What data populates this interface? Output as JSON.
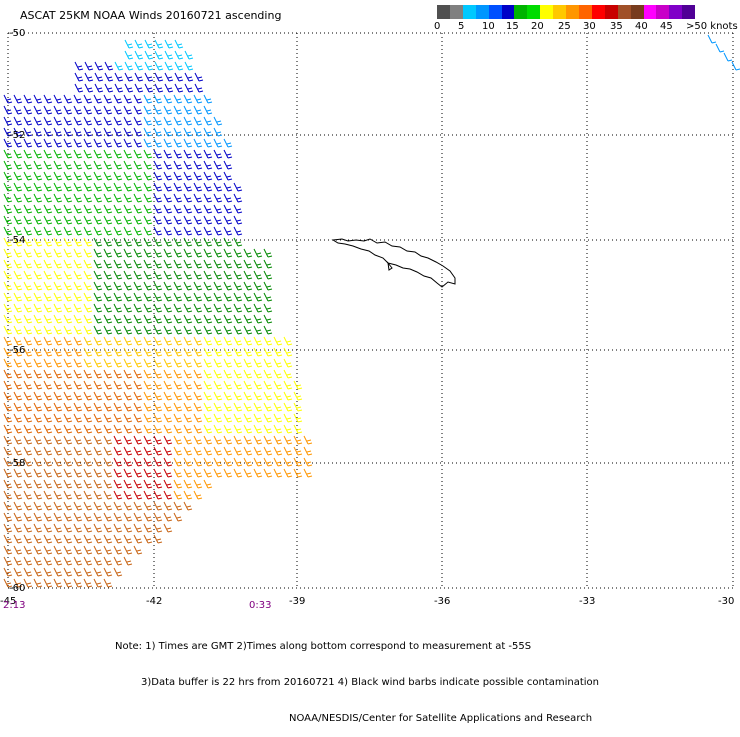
{
  "title": "ASCAT 25KM NOAA Winds 20160721 ascending",
  "colorbar": {
    "colors": [
      "#505050",
      "#808080",
      "#00c8ff",
      "#0096ff",
      "#0050ff",
      "#0000c8",
      "#00b400",
      "#00dc00",
      "#ffff00",
      "#ffc800",
      "#ff9600",
      "#ff6400",
      "#ff0000",
      "#c80000",
      "#a05028",
      "#783c1e",
      "#ff00ff",
      "#c800c8",
      "#8000c8",
      "#500096"
    ],
    "labels": [
      "0",
      "5",
      "10",
      "15",
      "20",
      "25",
      "30",
      "35",
      "40",
      "45",
      ">50 knots"
    ]
  },
  "axes": {
    "lat_labels": [
      "-50",
      "-52",
      "-54",
      "-56",
      "-58",
      "-60"
    ],
    "lon_labels": [
      "-45",
      "-42",
      "-39",
      "-36",
      "-33",
      "-30"
    ]
  },
  "times": {
    "left": "2:13",
    "middle": "0:33"
  },
  "notes": [
    "Note: 1) Times are GMT 2)Times along bottom correspond to measurement at -55S",
    "3)Data buffer is 22 hrs from 20160721 4) Black wind barbs indicate possible contamination",
    "NOAA/NESDIS/Center for Satellite Applications and Research"
  ],
  "map_data": {
    "region": "South Georgia Island, South Atlantic",
    "lat_range": [
      -60,
      -50
    ],
    "lon_range": [
      -45,
      -30
    ],
    "wind_speed_units": "knots"
  }
}
